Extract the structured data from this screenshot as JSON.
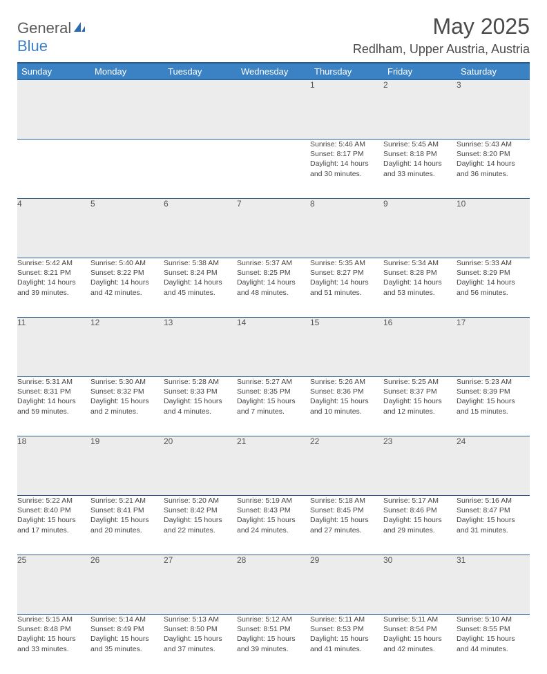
{
  "logo": {
    "general": "General",
    "blue": "Blue"
  },
  "title": "May 2025",
  "location": "Redlham, Upper Austria, Austria",
  "colors": {
    "header_bg": "#3b82c4",
    "header_text": "#ffffff",
    "border": "#2a5a8a",
    "daynum_bg": "#ececec",
    "text": "#444444"
  },
  "day_headers": [
    "Sunday",
    "Monday",
    "Tuesday",
    "Wednesday",
    "Thursday",
    "Friday",
    "Saturday"
  ],
  "weeks": [
    {
      "nums": [
        "",
        "",
        "",
        "",
        "1",
        "2",
        "3"
      ],
      "sunrise": [
        "",
        "",
        "",
        "",
        "Sunrise: 5:46 AM",
        "Sunrise: 5:45 AM",
        "Sunrise: 5:43 AM"
      ],
      "sunset": [
        "",
        "",
        "",
        "",
        "Sunset: 8:17 PM",
        "Sunset: 8:18 PM",
        "Sunset: 8:20 PM"
      ],
      "day1": [
        "",
        "",
        "",
        "",
        "Daylight: 14 hours",
        "Daylight: 14 hours",
        "Daylight: 14 hours"
      ],
      "day2": [
        "",
        "",
        "",
        "",
        "and 30 minutes.",
        "and 33 minutes.",
        "and 36 minutes."
      ]
    },
    {
      "nums": [
        "4",
        "5",
        "6",
        "7",
        "8",
        "9",
        "10"
      ],
      "sunrise": [
        "Sunrise: 5:42 AM",
        "Sunrise: 5:40 AM",
        "Sunrise: 5:38 AM",
        "Sunrise: 5:37 AM",
        "Sunrise: 5:35 AM",
        "Sunrise: 5:34 AM",
        "Sunrise: 5:33 AM"
      ],
      "sunset": [
        "Sunset: 8:21 PM",
        "Sunset: 8:22 PM",
        "Sunset: 8:24 PM",
        "Sunset: 8:25 PM",
        "Sunset: 8:27 PM",
        "Sunset: 8:28 PM",
        "Sunset: 8:29 PM"
      ],
      "day1": [
        "Daylight: 14 hours",
        "Daylight: 14 hours",
        "Daylight: 14 hours",
        "Daylight: 14 hours",
        "Daylight: 14 hours",
        "Daylight: 14 hours",
        "Daylight: 14 hours"
      ],
      "day2": [
        "and 39 minutes.",
        "and 42 minutes.",
        "and 45 minutes.",
        "and 48 minutes.",
        "and 51 minutes.",
        "and 53 minutes.",
        "and 56 minutes."
      ]
    },
    {
      "nums": [
        "11",
        "12",
        "13",
        "14",
        "15",
        "16",
        "17"
      ],
      "sunrise": [
        "Sunrise: 5:31 AM",
        "Sunrise: 5:30 AM",
        "Sunrise: 5:28 AM",
        "Sunrise: 5:27 AM",
        "Sunrise: 5:26 AM",
        "Sunrise: 5:25 AM",
        "Sunrise: 5:23 AM"
      ],
      "sunset": [
        "Sunset: 8:31 PM",
        "Sunset: 8:32 PM",
        "Sunset: 8:33 PM",
        "Sunset: 8:35 PM",
        "Sunset: 8:36 PM",
        "Sunset: 8:37 PM",
        "Sunset: 8:39 PM"
      ],
      "day1": [
        "Daylight: 14 hours",
        "Daylight: 15 hours",
        "Daylight: 15 hours",
        "Daylight: 15 hours",
        "Daylight: 15 hours",
        "Daylight: 15 hours",
        "Daylight: 15 hours"
      ],
      "day2": [
        "and 59 minutes.",
        "and 2 minutes.",
        "and 4 minutes.",
        "and 7 minutes.",
        "and 10 minutes.",
        "and 12 minutes.",
        "and 15 minutes."
      ]
    },
    {
      "nums": [
        "18",
        "19",
        "20",
        "21",
        "22",
        "23",
        "24"
      ],
      "sunrise": [
        "Sunrise: 5:22 AM",
        "Sunrise: 5:21 AM",
        "Sunrise: 5:20 AM",
        "Sunrise: 5:19 AM",
        "Sunrise: 5:18 AM",
        "Sunrise: 5:17 AM",
        "Sunrise: 5:16 AM"
      ],
      "sunset": [
        "Sunset: 8:40 PM",
        "Sunset: 8:41 PM",
        "Sunset: 8:42 PM",
        "Sunset: 8:43 PM",
        "Sunset: 8:45 PM",
        "Sunset: 8:46 PM",
        "Sunset: 8:47 PM"
      ],
      "day1": [
        "Daylight: 15 hours",
        "Daylight: 15 hours",
        "Daylight: 15 hours",
        "Daylight: 15 hours",
        "Daylight: 15 hours",
        "Daylight: 15 hours",
        "Daylight: 15 hours"
      ],
      "day2": [
        "and 17 minutes.",
        "and 20 minutes.",
        "and 22 minutes.",
        "and 24 minutes.",
        "and 27 minutes.",
        "and 29 minutes.",
        "and 31 minutes."
      ]
    },
    {
      "nums": [
        "25",
        "26",
        "27",
        "28",
        "29",
        "30",
        "31"
      ],
      "sunrise": [
        "Sunrise: 5:15 AM",
        "Sunrise: 5:14 AM",
        "Sunrise: 5:13 AM",
        "Sunrise: 5:12 AM",
        "Sunrise: 5:11 AM",
        "Sunrise: 5:11 AM",
        "Sunrise: 5:10 AM"
      ],
      "sunset": [
        "Sunset: 8:48 PM",
        "Sunset: 8:49 PM",
        "Sunset: 8:50 PM",
        "Sunset: 8:51 PM",
        "Sunset: 8:53 PM",
        "Sunset: 8:54 PM",
        "Sunset: 8:55 PM"
      ],
      "day1": [
        "Daylight: 15 hours",
        "Daylight: 15 hours",
        "Daylight: 15 hours",
        "Daylight: 15 hours",
        "Daylight: 15 hours",
        "Daylight: 15 hours",
        "Daylight: 15 hours"
      ],
      "day2": [
        "and 33 minutes.",
        "and 35 minutes.",
        "and 37 minutes.",
        "and 39 minutes.",
        "and 41 minutes.",
        "and 42 minutes.",
        "and 44 minutes."
      ]
    }
  ]
}
